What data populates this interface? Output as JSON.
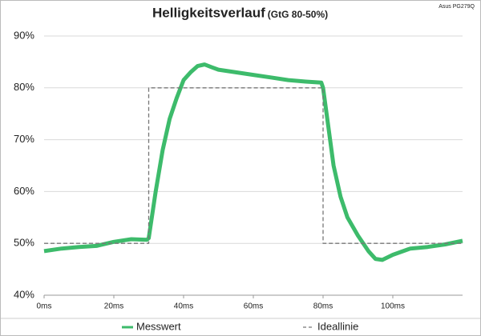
{
  "chart_data": {
    "type": "line",
    "title": "Helligkeitsverlauf",
    "subtitle": "(GtG 80-50%)",
    "annotation": "Asus PG279Q",
    "xlim": [
      0,
      120
    ],
    "xticks": [
      {
        "value": 0,
        "label": "0ms"
      },
      {
        "value": 20,
        "label": "20ms"
      },
      {
        "value": 40,
        "label": "40ms"
      },
      {
        "value": 60,
        "label": "60ms"
      },
      {
        "value": 80,
        "label": "80ms"
      },
      {
        "value": 100,
        "label": "100ms"
      }
    ],
    "ylim": [
      40,
      90
    ],
    "yticks": [
      {
        "value": 40,
        "label": "40%"
      },
      {
        "value": 50,
        "label": "50%"
      },
      {
        "value": 60,
        "label": "60%"
      },
      {
        "value": 70,
        "label": "70%"
      },
      {
        "value": 80,
        "label": "80%"
      },
      {
        "value": 90,
        "label": "90%"
      }
    ],
    "grid": true,
    "series": [
      {
        "name": "Messwert",
        "color": "#3dbb6b",
        "dashed": false,
        "x": [
          0,
          5,
          10,
          15,
          20,
          25,
          29.5,
          30,
          32,
          34,
          36,
          38,
          40,
          42,
          44,
          46,
          48,
          50,
          55,
          60,
          65,
          70,
          75,
          79.5,
          80,
          81,
          83,
          85,
          87,
          90,
          93,
          95,
          97,
          100,
          105,
          110,
          115,
          120
        ],
        "values": [
          48.5,
          49,
          49.3,
          49.5,
          50.3,
          50.8,
          50.7,
          51,
          60,
          68,
          74,
          78,
          81.5,
          83,
          84.2,
          84.5,
          84,
          83.5,
          83,
          82.5,
          82,
          81.5,
          81.2,
          81,
          80,
          75,
          65,
          59,
          55,
          51.5,
          48.5,
          47,
          46.8,
          47.8,
          49,
          49.3,
          49.8,
          50.5
        ]
      },
      {
        "name": "Ideallinie",
        "color": "#777777",
        "dashed": true,
        "x": [
          0,
          30,
          30,
          80,
          80,
          120
        ],
        "values": [
          50,
          50,
          80,
          80,
          50,
          50
        ]
      }
    ]
  }
}
